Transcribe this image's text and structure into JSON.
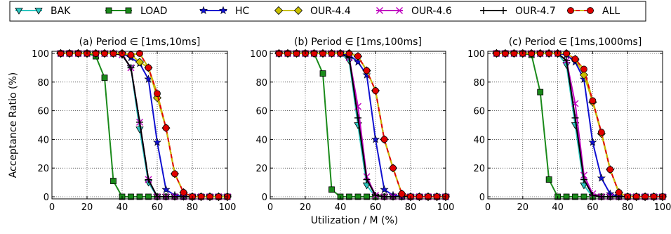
{
  "legend": [
    {
      "name": "BAK",
      "color": "#2cc6c0",
      "marker": "tri-down"
    },
    {
      "name": "LOAD",
      "color": "#1a8a1a",
      "marker": "square"
    },
    {
      "name": "HC",
      "color": "#1010d0",
      "marker": "star"
    },
    {
      "name": "OUR-4.4",
      "color": "#c8c000",
      "marker": "diamond"
    },
    {
      "name": "OUR-4.6",
      "color": "#c000c0",
      "marker": "x"
    },
    {
      "name": "OUR-4.7",
      "color": "#000000",
      "marker": "plus"
    },
    {
      "name": "ALL",
      "color": "#e00000",
      "marker": "circle",
      "dashed": true
    }
  ],
  "ylabel": "Acceptance Ratio (%)",
  "xlabel": "Utilization / M (%)",
  "chart_data": [
    {
      "type": "line",
      "title": "(a) Period ∈ [1ms,10ms]",
      "xlim": [
        0,
        100
      ],
      "ylim": [
        0,
        100
      ],
      "xticks": [
        0,
        20,
        40,
        60,
        80,
        100
      ],
      "yticks": [
        0,
        20,
        40,
        60,
        80,
        100
      ],
      "grid": true,
      "x": [
        5,
        10,
        15,
        20,
        25,
        30,
        35,
        40,
        45,
        50,
        55,
        60,
        65,
        70,
        75,
        80,
        85,
        90,
        95,
        100
      ],
      "series": [
        {
          "name": "BAK",
          "values": [
            100,
            100,
            100,
            100,
            100,
            100,
            100,
            99,
            90,
            47,
            10,
            0,
            0,
            0,
            0,
            0,
            0,
            0,
            0,
            0
          ]
        },
        {
          "name": "LOAD",
          "values": [
            100,
            100,
            100,
            100,
            98,
            83,
            11,
            0,
            0,
            0,
            0,
            0,
            0,
            0,
            0,
            0,
            0,
            0,
            0,
            0
          ]
        },
        {
          "name": "HC",
          "values": [
            100,
            100,
            100,
            100,
            100,
            100,
            100,
            100,
            97,
            93,
            82,
            38,
            5,
            1,
            0,
            0,
            0,
            0,
            0,
            0
          ]
        },
        {
          "name": "OUR-4.4",
          "values": [
            100,
            100,
            100,
            100,
            100,
            100,
            100,
            100,
            99,
            94,
            90,
            69,
            48,
            16,
            3,
            0,
            0,
            0,
            0,
            0
          ]
        },
        {
          "name": "OUR-4.6",
          "values": [
            100,
            100,
            100,
            100,
            100,
            100,
            100,
            99,
            90,
            52,
            12,
            0,
            0,
            0,
            0,
            0,
            0,
            0,
            0,
            0
          ]
        },
        {
          "name": "OUR-4.7",
          "values": [
            100,
            100,
            100,
            100,
            100,
            100,
            100,
            99,
            90,
            52,
            12,
            0,
            0,
            0,
            0,
            0,
            0,
            0,
            0,
            0
          ]
        },
        {
          "name": "ALL",
          "values": [
            100,
            100,
            100,
            100,
            100,
            100,
            100,
            100,
            99,
            100,
            90,
            72,
            48,
            16,
            3,
            0,
            0,
            0,
            0,
            0
          ]
        }
      ]
    },
    {
      "type": "line",
      "title": "(b) Period ∈ [1ms,100ms]",
      "xlim": [
        0,
        100
      ],
      "ylim": [
        0,
        100
      ],
      "xticks": [
        0,
        20,
        40,
        60,
        80,
        100
      ],
      "yticks": [
        0,
        20,
        40,
        60,
        80,
        100
      ],
      "grid": true,
      "x": [
        5,
        10,
        15,
        20,
        25,
        30,
        35,
        40,
        45,
        50,
        55,
        60,
        65,
        70,
        75,
        80,
        85,
        90,
        95,
        100
      ],
      "series": [
        {
          "name": "BAK",
          "values": [
            100,
            100,
            100,
            100,
            100,
            100,
            100,
            100,
            95,
            50,
            8,
            0,
            0,
            0,
            0,
            0,
            0,
            0,
            0,
            0
          ]
        },
        {
          "name": "LOAD",
          "values": [
            100,
            100,
            100,
            100,
            100,
            86,
            5,
            0,
            0,
            0,
            0,
            0,
            0,
            0,
            0,
            0,
            0,
            0,
            0,
            0
          ]
        },
        {
          "name": "HC",
          "values": [
            100,
            100,
            100,
            100,
            100,
            100,
            100,
            100,
            99,
            94,
            85,
            40,
            5,
            1,
            0,
            0,
            0,
            0,
            0,
            0
          ]
        },
        {
          "name": "OUR-4.4",
          "values": [
            100,
            100,
            100,
            100,
            100,
            100,
            100,
            100,
            100,
            98,
            88,
            74,
            40,
            20,
            2,
            0,
            0,
            0,
            0,
            0
          ]
        },
        {
          "name": "OUR-4.6",
          "values": [
            100,
            100,
            100,
            100,
            100,
            100,
            100,
            100,
            97,
            63,
            14,
            1,
            0,
            0,
            0,
            0,
            0,
            0,
            0,
            0
          ]
        },
        {
          "name": "OUR-4.7",
          "values": [
            100,
            100,
            100,
            100,
            100,
            100,
            100,
            100,
            97,
            55,
            12,
            1,
            0,
            0,
            0,
            0,
            0,
            0,
            0,
            0
          ]
        },
        {
          "name": "ALL",
          "values": [
            100,
            100,
            100,
            100,
            100,
            100,
            100,
            100,
            100,
            98,
            88,
            74,
            40,
            20,
            2,
            0,
            0,
            0,
            0,
            0
          ]
        }
      ]
    },
    {
      "type": "line",
      "title": "(c) Period ∈ [1ms,1000ms]",
      "xlim": [
        0,
        100
      ],
      "ylim": [
        0,
        100
      ],
      "xticks": [
        0,
        20,
        40,
        60,
        80,
        100
      ],
      "yticks": [
        0,
        20,
        40,
        60,
        80,
        100
      ],
      "grid": true,
      "x": [
        5,
        10,
        15,
        20,
        25,
        30,
        35,
        40,
        45,
        50,
        55,
        60,
        65,
        70,
        75,
        80,
        85,
        90,
        95,
        100
      ],
      "series": [
        {
          "name": "BAK",
          "values": [
            100,
            100,
            100,
            100,
            100,
            100,
            100,
            100,
            92,
            50,
            8,
            0,
            0,
            0,
            0,
            0,
            0,
            0,
            0,
            0
          ]
        },
        {
          "name": "LOAD",
          "values": [
            100,
            100,
            100,
            100,
            99,
            73,
            12,
            0,
            0,
            0,
            0,
            0,
            0,
            0,
            0,
            0,
            0,
            0,
            0,
            0
          ]
        },
        {
          "name": "HC",
          "values": [
            100,
            100,
            100,
            100,
            100,
            100,
            100,
            100,
            99,
            94,
            82,
            38,
            13,
            2,
            0,
            0,
            0,
            0,
            0,
            0
          ]
        },
        {
          "name": "OUR-4.4",
          "values": [
            100,
            100,
            100,
            100,
            100,
            100,
            100,
            100,
            100,
            96,
            85,
            66,
            44,
            19,
            3,
            0,
            0,
            0,
            0,
            0
          ]
        },
        {
          "name": "OUR-4.6",
          "values": [
            100,
            100,
            100,
            100,
            100,
            100,
            100,
            100,
            95,
            65,
            15,
            2,
            0,
            0,
            0,
            0,
            0,
            0,
            0,
            0
          ]
        },
        {
          "name": "OUR-4.7",
          "values": [
            100,
            100,
            100,
            100,
            100,
            100,
            100,
            100,
            95,
            55,
            12,
            1,
            0,
            0,
            0,
            0,
            0,
            0,
            0,
            0
          ]
        },
        {
          "name": "ALL",
          "values": [
            100,
            100,
            100,
            100,
            100,
            100,
            100,
            100,
            100,
            96,
            89,
            67,
            45,
            19,
            3,
            0,
            0,
            0,
            0,
            0
          ]
        }
      ]
    }
  ]
}
